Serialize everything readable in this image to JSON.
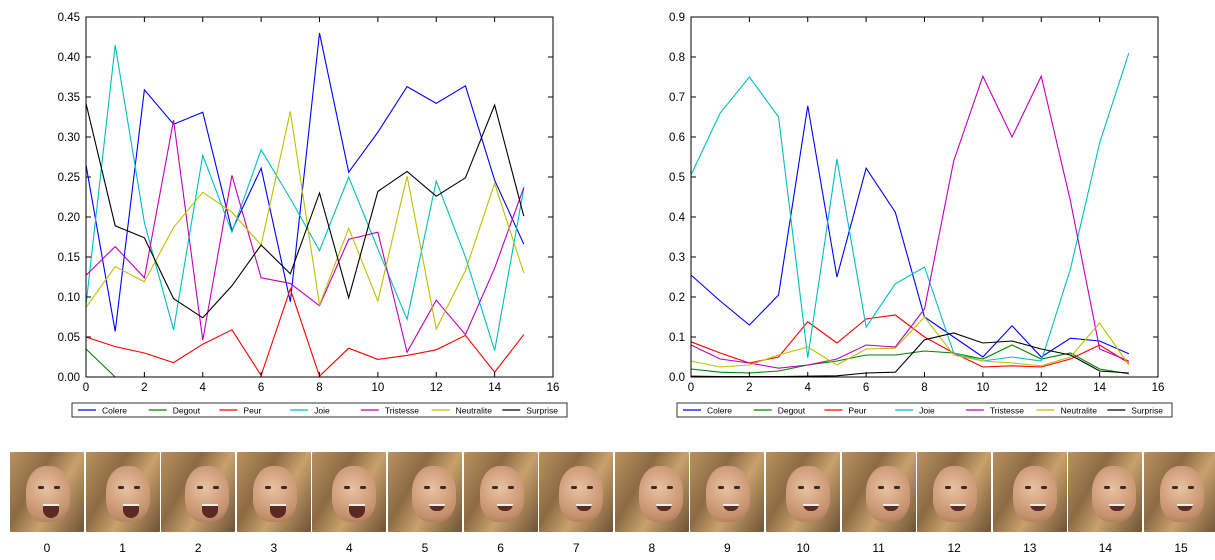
{
  "chart_data": [
    {
      "type": "line",
      "title": "",
      "xlabel": "",
      "ylabel": "",
      "xlim": [
        0,
        16
      ],
      "ylim": [
        0,
        0.45
      ],
      "xticks": [
        "0",
        "2",
        "4",
        "6",
        "8",
        "10",
        "12",
        "14",
        "16"
      ],
      "yticks": [
        "0.00",
        "0.05",
        "0.10",
        "0.15",
        "0.20",
        "0.25",
        "0.30",
        "0.35",
        "0.40",
        "0.45"
      ],
      "legend": "bottom",
      "grid": false,
      "x": [
        0,
        1,
        2,
        3,
        4,
        5,
        6,
        7,
        8,
        9,
        10,
        11,
        12,
        13,
        14,
        15
      ],
      "series": [
        {
          "name": "Colere",
          "color": "#0000ff",
          "values": [
            0.265,
            0.057,
            0.359,
            0.316,
            0.331,
            0.183,
            0.261,
            0.094,
            0.43,
            0.256,
            0.306,
            0.363,
            0.342,
            0.364,
            0.246,
            0.166
          ]
        },
        {
          "name": "Degout",
          "color": "#008000",
          "values": [
            0.035,
            0.0,
            null,
            null,
            null,
            null,
            null,
            null,
            null,
            null,
            null,
            null,
            null,
            null,
            null,
            null
          ]
        },
        {
          "name": "Peur",
          "color": "#ff0000",
          "values": [
            0.05,
            0.038,
            0.03,
            0.018,
            0.041,
            0.059,
            0.002,
            0.11,
            0.001,
            0.036,
            0.022,
            0.027,
            0.034,
            0.052,
            0.006,
            0.053
          ]
        },
        {
          "name": "Joie",
          "color": "#00bfbf",
          "values": [
            0.09,
            0.415,
            0.193,
            0.059,
            0.277,
            0.181,
            0.284,
            0.223,
            0.158,
            0.25,
            0.16,
            0.072,
            0.245,
            0.15,
            0.033,
            0.236
          ]
        },
        {
          "name": "Tristesse",
          "color": "#bf00bf",
          "values": [
            0.127,
            0.163,
            0.124,
            0.321,
            0.046,
            0.252,
            0.124,
            0.117,
            0.089,
            0.172,
            0.181,
            0.031,
            0.096,
            0.053,
            0.136,
            0.237
          ]
        },
        {
          "name": "Neutralite",
          "color": "#bfbf00",
          "values": [
            0.087,
            0.138,
            0.119,
            0.187,
            0.231,
            0.206,
            0.165,
            0.332,
            0.09,
            0.186,
            0.095,
            0.251,
            0.06,
            0.133,
            0.242,
            0.13
          ]
        },
        {
          "name": "Surprise",
          "color": "#000000",
          "values": [
            0.342,
            0.189,
            0.174,
            0.098,
            0.074,
            0.114,
            0.165,
            0.129,
            0.23,
            0.099,
            0.232,
            0.257,
            0.226,
            0.249,
            0.34,
            0.201
          ]
        }
      ]
    },
    {
      "type": "line",
      "title": "",
      "xlabel": "",
      "ylabel": "",
      "xlim": [
        0,
        16
      ],
      "ylim": [
        0,
        0.9
      ],
      "xticks": [
        "0",
        "2",
        "4",
        "6",
        "8",
        "10",
        "12",
        "14",
        "16"
      ],
      "yticks": [
        "0.0",
        "0.1",
        "0.2",
        "0.3",
        "0.4",
        "0.5",
        "0.6",
        "0.7",
        "0.8",
        "0.9"
      ],
      "legend": "bottom",
      "grid": false,
      "x": [
        0,
        1,
        2,
        3,
        4,
        5,
        6,
        7,
        8,
        9,
        10,
        11,
        12,
        13,
        14,
        15
      ],
      "series": [
        {
          "name": "Colere",
          "color": "#0000ff",
          "values": [
            0.255,
            0.19,
            0.13,
            0.205,
            0.678,
            0.25,
            0.522,
            0.412,
            0.15,
            0.1,
            0.05,
            0.128,
            0.05,
            0.097,
            0.09,
            0.058
          ]
        },
        {
          "name": "Degout",
          "color": "#008000",
          "values": [
            0.02,
            0.012,
            0.01,
            0.015,
            0.03,
            0.04,
            0.055,
            0.055,
            0.065,
            0.06,
            0.045,
            0.08,
            0.045,
            0.06,
            0.02,
            0.008
          ]
        },
        {
          "name": "Peur",
          "color": "#ff0000",
          "values": [
            0.088,
            0.06,
            0.035,
            0.05,
            0.138,
            0.085,
            0.145,
            0.155,
            0.1,
            0.06,
            0.025,
            0.028,
            0.025,
            0.045,
            0.08,
            0.035
          ]
        },
        {
          "name": "Joie",
          "color": "#00bfbf",
          "values": [
            0.505,
            0.66,
            0.75,
            0.65,
            0.048,
            0.545,
            0.125,
            0.233,
            0.275,
            0.06,
            0.04,
            0.05,
            0.04,
            0.27,
            0.585,
            0.81
          ]
        },
        {
          "name": "Tristesse",
          "color": "#bf00bf",
          "values": [
            0.08,
            0.045,
            0.035,
            0.022,
            0.03,
            0.045,
            0.08,
            0.075,
            0.17,
            0.54,
            0.752,
            0.6,
            0.752,
            0.44,
            0.07,
            0.04
          ]
        },
        {
          "name": "Neutralite",
          "color": "#bfbf00",
          "values": [
            0.04,
            0.025,
            0.03,
            0.055,
            0.075,
            0.03,
            0.07,
            0.072,
            0.15,
            0.055,
            0.04,
            0.035,
            0.028,
            0.05,
            0.135,
            0.03
          ]
        },
        {
          "name": "Surprise",
          "color": "#000000",
          "values": [
            0.002,
            0.001,
            0.001,
            0.001,
            0.002,
            0.003,
            0.01,
            0.012,
            0.093,
            0.11,
            0.085,
            0.09,
            0.07,
            0.055,
            0.015,
            0.01
          ]
        }
      ]
    }
  ],
  "filmstrip": {
    "labels": [
      "0",
      "1",
      "2",
      "3",
      "4",
      "5",
      "6",
      "7",
      "8",
      "9",
      "10",
      "11",
      "12",
      "13",
      "14",
      "15"
    ]
  }
}
